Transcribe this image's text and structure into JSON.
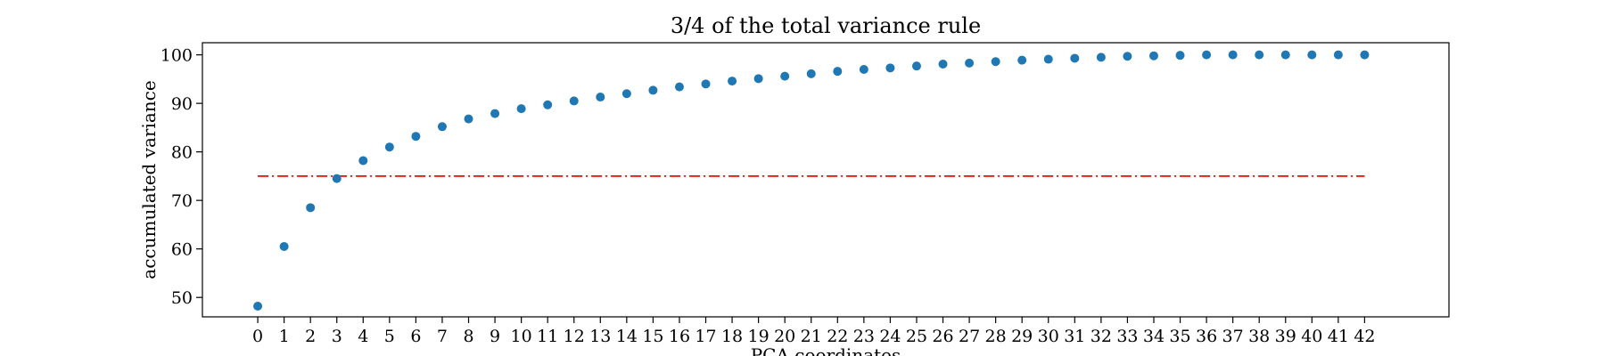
{
  "chart_data": {
    "type": "scatter",
    "title": "3/4 of the total variance rule",
    "xlabel": "PCA coordinates",
    "ylabel": "accumulated variance",
    "x": [
      0,
      1,
      2,
      3,
      4,
      5,
      6,
      7,
      8,
      9,
      10,
      11,
      12,
      13,
      14,
      15,
      16,
      17,
      18,
      19,
      20,
      21,
      22,
      23,
      24,
      25,
      26,
      27,
      28,
      29,
      30,
      31,
      32,
      33,
      34,
      35,
      36,
      37,
      38,
      39,
      40,
      41,
      42
    ],
    "series": [
      {
        "values": [
          48.2,
          60.5,
          68.5,
          74.5,
          78.2,
          81.0,
          83.2,
          85.2,
          86.8,
          87.9,
          88.9,
          89.7,
          90.5,
          91.3,
          92.0,
          92.7,
          93.4,
          94.0,
          94.6,
          95.1,
          95.6,
          96.1,
          96.6,
          97.0,
          97.3,
          97.7,
          98.1,
          98.3,
          98.6,
          98.9,
          99.1,
          99.3,
          99.5,
          99.7,
          99.8,
          99.9,
          100.0,
          100.0,
          100.0,
          100.0,
          100.0,
          100.0,
          100.0
        ],
        "color": "#1f77b4"
      }
    ],
    "reference_line": {
      "y": 75,
      "x_range": [
        0,
        42
      ],
      "style": "dashdot",
      "color": "#ff0000"
    },
    "xlim": [
      -2.1,
      45.2
    ],
    "ylim": [
      46.0,
      102.5
    ],
    "x_ticks": [
      0,
      1,
      2,
      3,
      4,
      5,
      6,
      7,
      8,
      9,
      10,
      11,
      12,
      13,
      14,
      15,
      16,
      17,
      18,
      19,
      20,
      21,
      22,
      23,
      24,
      25,
      26,
      27,
      28,
      29,
      30,
      31,
      32,
      33,
      34,
      35,
      36,
      37,
      38,
      39,
      40,
      41,
      42
    ],
    "y_ticks": [
      50,
      60,
      70,
      80,
      90,
      100
    ],
    "grid": false,
    "legend": "none"
  }
}
